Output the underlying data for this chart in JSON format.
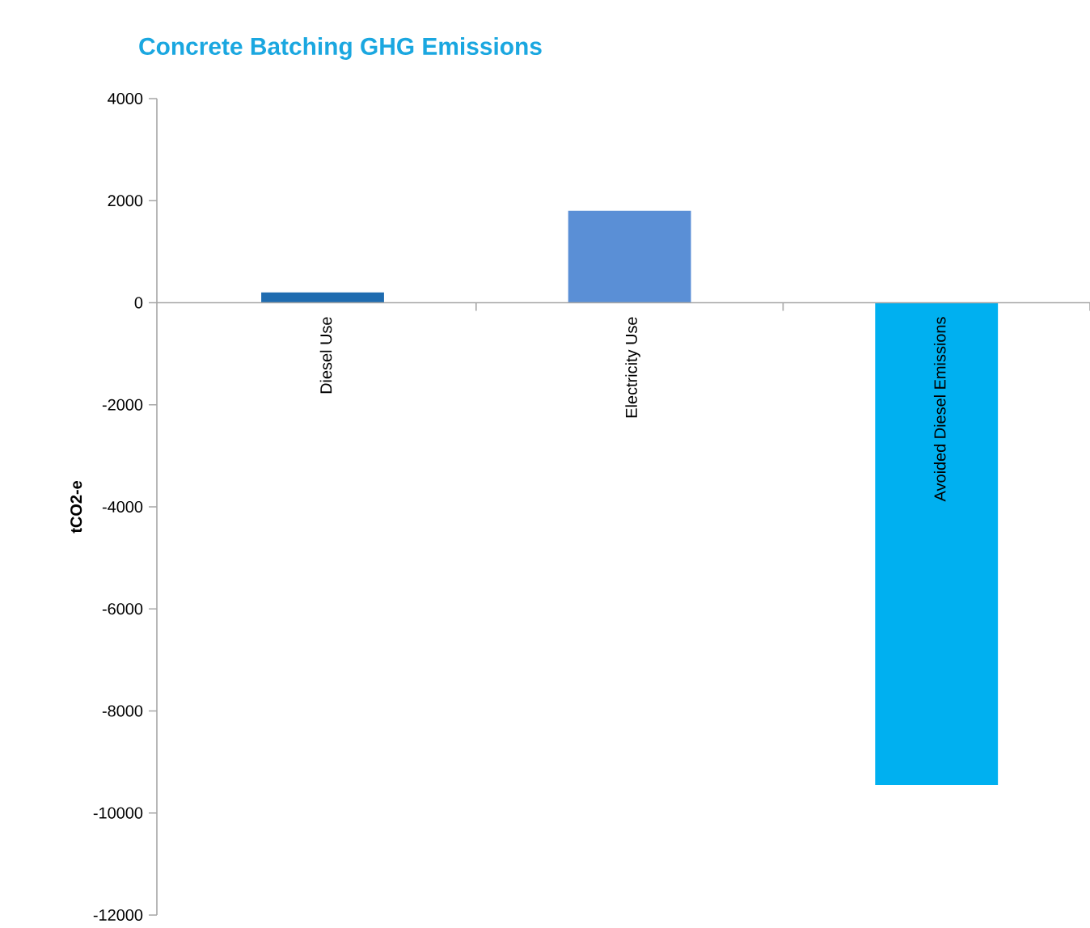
{
  "chart_data": {
    "type": "bar",
    "title": "Concrete Batching GHG Emissions",
    "ylabel": "tCO2-e",
    "categories": [
      "Diesel Use",
      "Electricity Use",
      "Avoided Diesel Emissions"
    ],
    "values": [
      200,
      1800,
      -9450
    ],
    "colors": [
      "#1f6cb0",
      "#5a8fd6",
      "#00b0f0"
    ],
    "ylim": [
      -12000,
      4000
    ],
    "yticks": [
      -12000,
      -10000,
      -8000,
      -6000,
      -4000,
      -2000,
      0,
      2000,
      4000
    ]
  }
}
